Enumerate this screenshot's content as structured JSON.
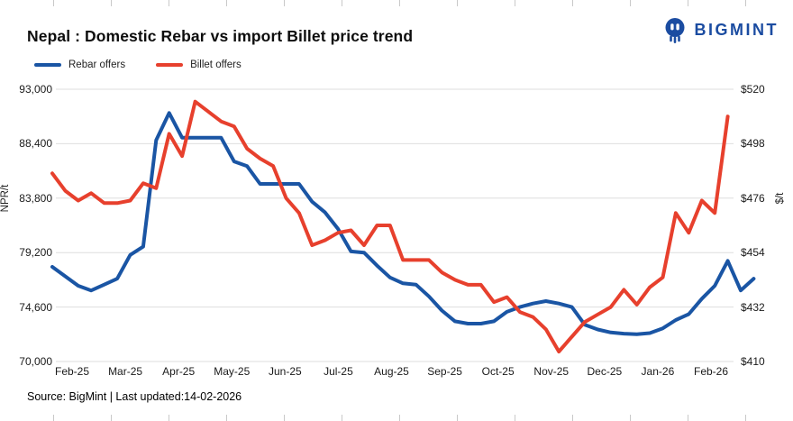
{
  "header": {
    "title": "Nepal : Domestic Rebar vs import Billet price trend",
    "brand": "BIGMINT"
  },
  "legend": [
    {
      "label": "Rebar offers",
      "color": "#1a55a4"
    },
    {
      "label": "Billet offers",
      "color": "#e7402d"
    }
  ],
  "footer": {
    "source": "Source: BigMint | Last updated:14-02-2026"
  },
  "chart_data": {
    "type": "line",
    "title": "Nepal : Domestic Rebar vs import Billet price trend",
    "x_unit": "weekly",
    "x_tick_labels": [
      "Feb-25",
      "Mar-25",
      "Apr-25",
      "May-25",
      "Jun-25",
      "Jul-25",
      "Aug-25",
      "Sep-25",
      "Oct-25",
      "Nov-25",
      "Dec-25",
      "Jan-26",
      "Feb-26"
    ],
    "left_axis": {
      "label": "NPR/t",
      "min": 70000,
      "max": 93000,
      "ticks": [
        93000,
        88400,
        83800,
        79200,
        74600,
        70000
      ],
      "tick_labels": [
        "93,000",
        "88,400",
        "83,800",
        "79,200",
        "74,600",
        "70,000"
      ]
    },
    "right_axis": {
      "label": "$/t",
      "min": 410,
      "max": 520,
      "ticks": [
        520,
        498,
        476,
        454,
        432,
        410
      ],
      "tick_labels": [
        "$520",
        "$498",
        "$476",
        "$454",
        "$432",
        "$410"
      ]
    },
    "grid": true,
    "legend_position": "top-left",
    "series": [
      {
        "name": "Rebar offers",
        "axis": "left",
        "color": "#1a55a4",
        "values": [
          78000,
          77200,
          76400,
          76000,
          76500,
          77000,
          79000,
          79700,
          88700,
          91000,
          88900,
          88900,
          88900,
          88900,
          86900,
          86500,
          85000,
          85000,
          85000,
          85000,
          83500,
          82600,
          81200,
          79300,
          79200,
          78100,
          77100,
          76600,
          76500,
          75500,
          74300,
          73400,
          73200,
          73200,
          73400,
          74200,
          74600,
          74900,
          75100,
          74900,
          74600,
          73100,
          72700,
          72450,
          72350,
          72300,
          72400,
          72800,
          73500,
          74000,
          75300,
          76400,
          78500,
          76000,
          77000
        ]
      },
      {
        "name": "Billet offers",
        "axis": "right",
        "color": "#e7402d",
        "values": [
          486,
          479,
          475,
          478,
          474,
          474,
          475,
          482,
          480,
          502,
          493,
          515,
          511,
          507,
          505,
          496,
          492,
          489,
          476,
          470,
          457,
          459,
          462,
          463,
          457,
          465,
          465,
          451,
          451,
          451,
          446,
          443,
          441,
          441,
          434,
          436,
          430,
          428,
          423,
          414,
          420,
          426,
          429,
          432,
          439,
          433,
          440,
          444,
          470,
          462,
          475,
          470,
          509
        ]
      }
    ]
  }
}
